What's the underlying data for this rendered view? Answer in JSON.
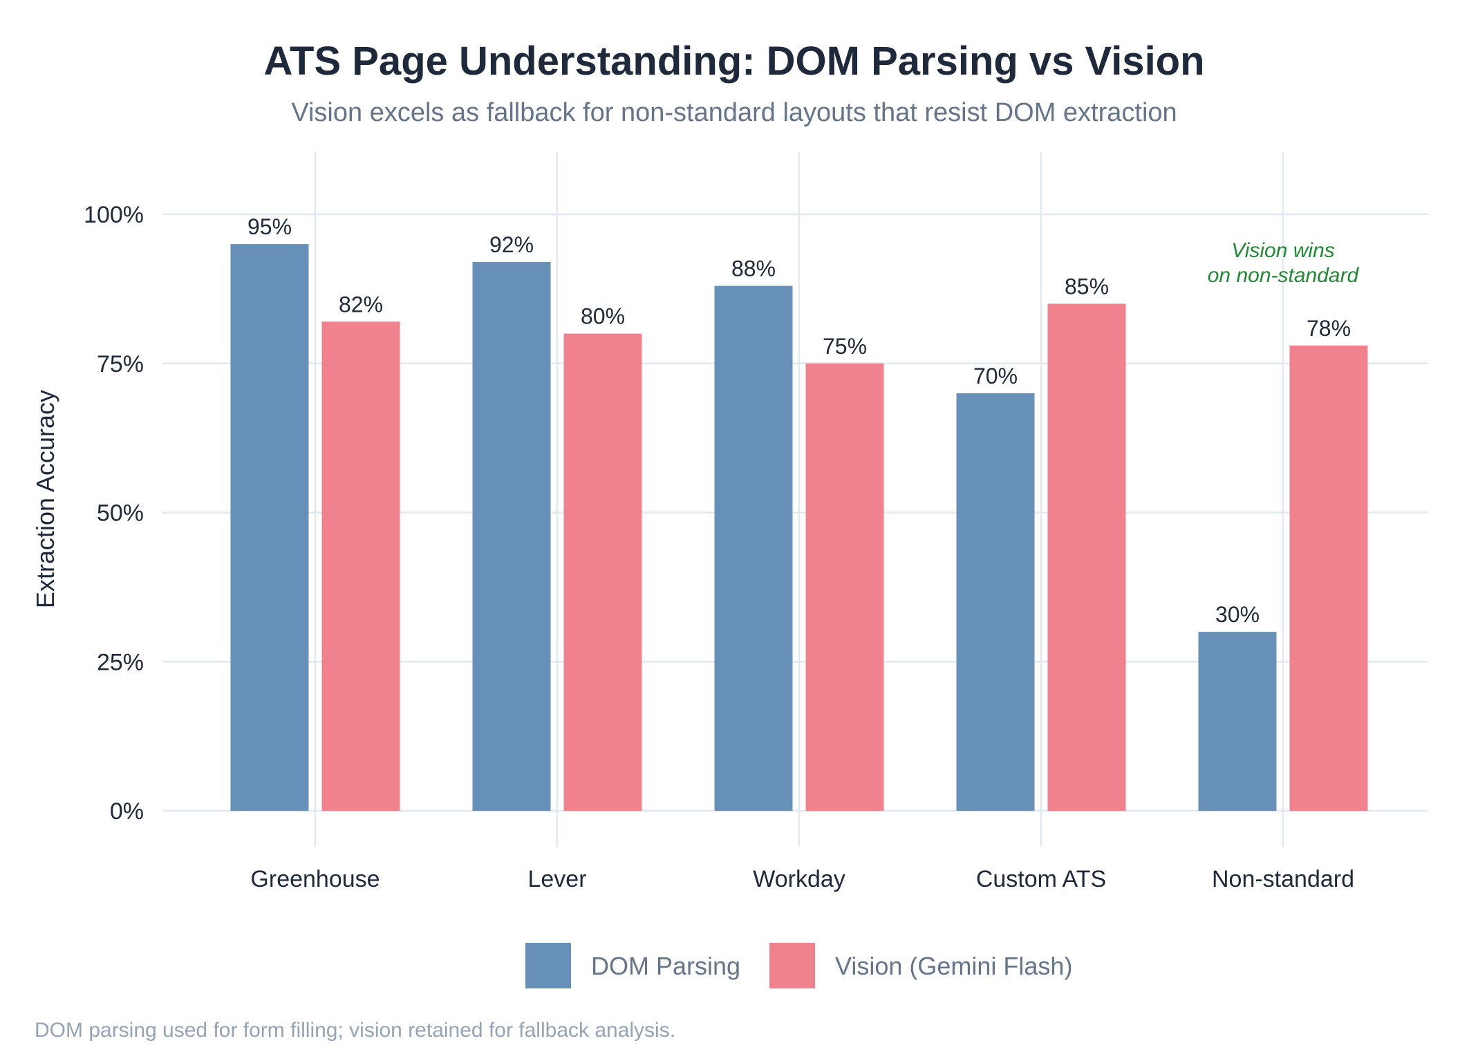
{
  "chart_data": {
    "type": "bar",
    "title": "ATS Page Understanding: DOM Parsing vs Vision",
    "subtitle": "Vision excels as fallback for non-standard layouts that resist DOM extraction",
    "xlabel": "",
    "ylabel": "Extraction Accuracy",
    "ylim": [
      0,
      110
    ],
    "yticks": [
      0,
      25,
      50,
      75,
      100
    ],
    "ytick_labels": [
      "0%",
      "25%",
      "50%",
      "75%",
      "100%"
    ],
    "categories": [
      "Greenhouse",
      "Lever",
      "Workday",
      "Custom ATS",
      "Non-standard"
    ],
    "series": [
      {
        "name": "DOM Parsing",
        "color": "#6790b9",
        "values": [
          95,
          92,
          88,
          70,
          30
        ],
        "labels": [
          "95%",
          "92%",
          "88%",
          "70%",
          "30%"
        ]
      },
      {
        "name": "Vision (Gemini Flash)",
        "color": "#f0828e",
        "values": [
          82,
          80,
          75,
          85,
          78
        ],
        "labels": [
          "82%",
          "80%",
          "75%",
          "85%",
          "78%"
        ]
      }
    ],
    "grid": true,
    "legend_position": "bottom-center",
    "annotation": {
      "lines": [
        "Vision wins",
        "on non-standard"
      ],
      "category": "Non-standard",
      "color": "#1e8a32"
    },
    "caption": "DOM parsing used for form filling; vision retained for fallback analysis."
  }
}
